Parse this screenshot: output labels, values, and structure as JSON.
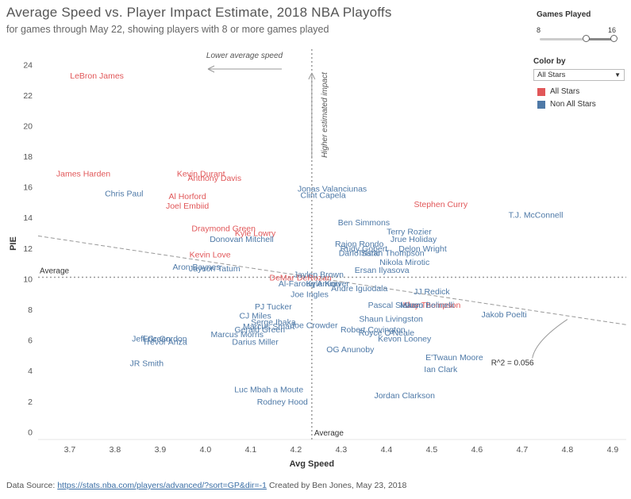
{
  "header": {
    "title": "Average Speed vs. Player Impact Estimate, 2018 NBA Playoffs",
    "subtitle": "for games through May 22, showing players with 8 or more games played"
  },
  "controls": {
    "games_played": {
      "label": "Games Played",
      "min_label": "8",
      "max_label": "16",
      "min": 8,
      "max": 16,
      "low": 13,
      "high": 16
    },
    "color_by": {
      "label": "Color by",
      "selected": "All Stars"
    },
    "legend": [
      {
        "label": "All Stars",
        "color": "#e15759"
      },
      {
        "label": "Non All Stars",
        "color": "#4e79a7"
      }
    ]
  },
  "footer": {
    "source_label": "Data Source:",
    "source_link": "https://stats.nba.com/players/advanced/?sort=GP&dir=-1",
    "credit": "Created by Ben Jones, May 23, 2018"
  },
  "chart_data": {
    "type": "scatter",
    "xlabel": "Avg Speed",
    "ylabel": "PIE",
    "xlim": [
      3.63,
      4.93
    ],
    "ylim": [
      -0.5,
      25
    ],
    "xticks": [
      3.7,
      3.8,
      3.9,
      4.0,
      4.1,
      4.2,
      4.3,
      4.4,
      4.5,
      4.6,
      4.7,
      4.8,
      4.9
    ],
    "yticks": [
      0,
      2,
      4,
      6,
      8,
      10,
      12,
      14,
      16,
      18,
      20,
      22,
      24
    ],
    "avg_x": 4.235,
    "avg_y": 10.1,
    "avg_x_label": "Average",
    "avg_y_label": "Average",
    "trendline": {
      "start": [
        3.63,
        12.8
      ],
      "end": [
        4.93,
        7.0
      ],
      "label": "R^2 = 0.056",
      "label_pos": [
        4.74,
        4.5
      ]
    },
    "annotations": [
      {
        "text": "Lower average speed",
        "x": 4.1,
        "y": 24.5,
        "kind": "x-arrow"
      },
      {
        "text": "Higher estimated impact",
        "x": 4.255,
        "y": 20,
        "kind": "y-arrow"
      }
    ],
    "series": [
      {
        "name": "All Stars",
        "color": "#e15759",
        "points": [
          {
            "label": "LeBron James",
            "x": 3.76,
            "y": 23.3
          },
          {
            "label": "James Harden",
            "x": 3.73,
            "y": 16.9
          },
          {
            "label": "Kevin Durant",
            "x": 3.99,
            "y": 16.9
          },
          {
            "label": "Anthony Davis",
            "x": 4.02,
            "y": 16.6
          },
          {
            "label": "Al Horford",
            "x": 3.96,
            "y": 15.4
          },
          {
            "label": "Joel Embiid",
            "x": 3.96,
            "y": 14.8
          },
          {
            "label": "Stephen Curry",
            "x": 4.52,
            "y": 14.9
          },
          {
            "label": "Draymond Green",
            "x": 4.04,
            "y": 13.3
          },
          {
            "label": "Kyle Lowry",
            "x": 4.11,
            "y": 13.0
          },
          {
            "label": "Kevin Love",
            "x": 4.01,
            "y": 11.6
          },
          {
            "label": "DeMar DeRozan",
            "x": 4.21,
            "y": 10.1
          },
          {
            "label": "Klay Thompson",
            "x": 4.5,
            "y": 8.3
          }
        ]
      },
      {
        "name": "Non All Stars",
        "color": "#4e79a7",
        "points": [
          {
            "label": "Chris Paul",
            "x": 3.82,
            "y": 15.6
          },
          {
            "label": "Jonas Valanciunas",
            "x": 4.28,
            "y": 15.9
          },
          {
            "label": "Clint Capela",
            "x": 4.26,
            "y": 15.5
          },
          {
            "label": "T.J. McConnell",
            "x": 4.73,
            "y": 14.2
          },
          {
            "label": "Ben Simmons",
            "x": 4.35,
            "y": 13.7
          },
          {
            "label": "Terry Rozier",
            "x": 4.45,
            "y": 13.1
          },
          {
            "label": "Jrue Holiday",
            "x": 4.46,
            "y": 12.6
          },
          {
            "label": "Donovan Mitchell",
            "x": 4.08,
            "y": 12.6
          },
          {
            "label": "Rajon Rondo",
            "x": 4.34,
            "y": 12.3
          },
          {
            "label": "Rudy Gobert",
            "x": 4.35,
            "y": 12.0
          },
          {
            "label": "Delon Wright",
            "x": 4.48,
            "y": 12.0
          },
          {
            "label": "Dario Saric",
            "x": 4.34,
            "y": 11.7
          },
          {
            "label": "Tristan Thompson",
            "x": 4.41,
            "y": 11.7
          },
          {
            "label": "Nikola Mirotic",
            "x": 4.44,
            "y": 11.1
          },
          {
            "label": "Aron Baynes",
            "x": 3.98,
            "y": 10.8
          },
          {
            "label": "Jayson Tatum",
            "x": 4.02,
            "y": 10.7
          },
          {
            "label": "Ersan Ilyasova",
            "x": 4.39,
            "y": 10.6
          },
          {
            "label": "Jaylen Brown",
            "x": 4.25,
            "y": 10.3
          },
          {
            "label": "Al-Farouq Aminu",
            "x": 4.23,
            "y": 9.7
          },
          {
            "label": "Kyle Korver",
            "x": 4.27,
            "y": 9.7
          },
          {
            "label": "Andre Iguodala",
            "x": 4.34,
            "y": 9.4
          },
          {
            "label": "JJ Redick",
            "x": 4.5,
            "y": 9.2
          },
          {
            "label": "Joe Ingles",
            "x": 4.23,
            "y": 9.0
          },
          {
            "label": "PJ Tucker",
            "x": 4.15,
            "y": 8.2
          },
          {
            "label": "Pascal Siakam",
            "x": 4.42,
            "y": 8.3
          },
          {
            "label": "Marco Belinelli",
            "x": 4.49,
            "y": 8.3
          },
          {
            "label": "Jakob Poelti",
            "x": 4.66,
            "y": 7.7
          },
          {
            "label": "CJ Miles",
            "x": 4.11,
            "y": 7.6
          },
          {
            "label": "Shaun Livingston",
            "x": 4.41,
            "y": 7.4
          },
          {
            "label": "Serge Ibaka",
            "x": 4.15,
            "y": 7.2
          },
          {
            "label": "Joe Crowder",
            "x": 4.24,
            "y": 7.0
          },
          {
            "label": "Marcus Smart",
            "x": 4.14,
            "y": 6.9
          },
          {
            "label": "Gerald Green",
            "x": 4.12,
            "y": 6.7
          },
          {
            "label": "Robert Covington",
            "x": 4.37,
            "y": 6.7
          },
          {
            "label": "Royce O'Neale",
            "x": 4.4,
            "y": 6.5
          },
          {
            "label": "Marcus Morris",
            "x": 4.07,
            "y": 6.4
          },
          {
            "label": "Kevon Looney",
            "x": 4.44,
            "y": 6.1
          },
          {
            "label": "Eric Gordon",
            "x": 3.91,
            "y": 6.1
          },
          {
            "label": "Jeff Green",
            "x": 3.88,
            "y": 6.1
          },
          {
            "label": "Trevor Ariza",
            "x": 3.91,
            "y": 5.9
          },
          {
            "label": "Darius Miller",
            "x": 4.11,
            "y": 5.9
          },
          {
            "label": "OG Anunoby",
            "x": 4.32,
            "y": 5.4
          },
          {
            "label": "E'Twaun Moore",
            "x": 4.55,
            "y": 4.9
          },
          {
            "label": "JR Smith",
            "x": 3.87,
            "y": 4.5
          },
          {
            "label": "Ian Clark",
            "x": 4.52,
            "y": 4.1
          },
          {
            "label": "Luc Mbah a Moute",
            "x": 4.14,
            "y": 2.8
          },
          {
            "label": "Jordan Clarkson",
            "x": 4.44,
            "y": 2.4
          },
          {
            "label": "Rodney Hood",
            "x": 4.17,
            "y": 2.0
          }
        ]
      }
    ]
  }
}
